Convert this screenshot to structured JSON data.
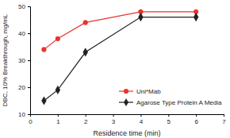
{
  "chart_data": {
    "type": "line",
    "x_label": "Residence time (min)",
    "y_label": "DBC, 10% Breakthrough, mg/mL",
    "x": [
      0.5,
      1,
      2,
      4,
      6
    ],
    "series": [
      {
        "name": "Uni*Mab",
        "color": "#e8352e",
        "marker": "circle",
        "values": [
          34,
          38,
          44,
          48,
          48
        ]
      },
      {
        "name": "Agarose Type Protein A Media",
        "color": "#222222",
        "marker": "diamond",
        "values": [
          15,
          19,
          33,
          46,
          46
        ]
      }
    ],
    "xlim": [
      0,
      7
    ],
    "xticks": [
      0,
      1,
      2,
      3,
      4,
      5,
      6,
      7
    ],
    "ylim": [
      10,
      50
    ],
    "yticks": [
      10,
      20,
      30,
      40,
      50
    ],
    "grid": false,
    "legend": "lower right"
  }
}
